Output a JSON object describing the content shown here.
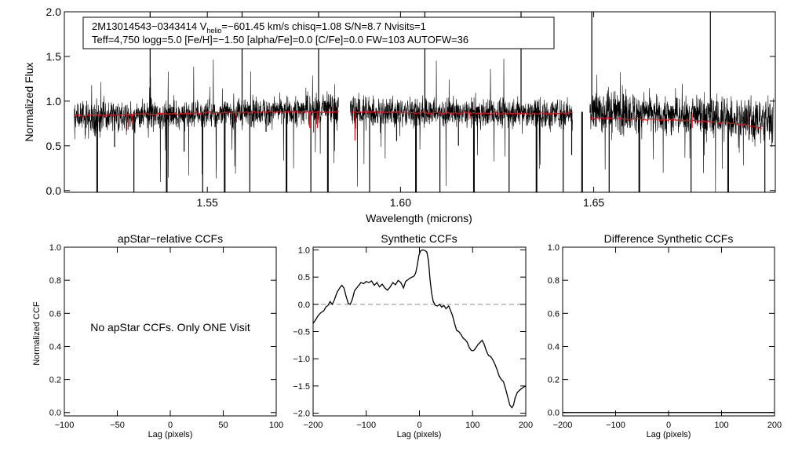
{
  "colors": {
    "axis": "#000000",
    "spectrum": "#000000",
    "model": "#e8101a",
    "zero_line": "#8c8c8c",
    "background": "#ffffff"
  },
  "chart_data": [
    {
      "id": "spectrum",
      "type": "line",
      "title": "",
      "xlabel": "Wavelength (microns)",
      "ylabel": "Normalized Flux",
      "xlim": [
        1.513,
        1.697
      ],
      "ylim": [
        -0.02,
        2.0
      ],
      "xticks": [
        {
          "value": 1.55,
          "label": "1.55"
        },
        {
          "value": 1.6,
          "label": "1.60"
        },
        {
          "value": 1.65,
          "label": "1.65"
        }
      ],
      "yticks": [
        {
          "value": 0.0,
          "label": "0.0"
        },
        {
          "value": 0.5,
          "label": "0.5"
        },
        {
          "value": 1.0,
          "label": "1.0"
        },
        {
          "value": 1.5,
          "label": "1.5"
        },
        {
          "value": 2.0,
          "label": "2.0"
        }
      ],
      "segments": [
        {
          "range": [
            1.5155,
            1.584
          ],
          "base": 0.86,
          "noise": 0.14,
          "trend": 0.1
        },
        {
          "range": [
            1.587,
            1.6445
          ],
          "base": 0.87,
          "noise": 0.14,
          "trend": -0.02
        },
        {
          "range": [
            1.649,
            1.6965
          ],
          "base": 0.84,
          "noise": 0.2,
          "trend": -0.12
        }
      ],
      "model": [
        {
          "range": [
            1.5155,
            1.584
          ],
          "values": [
            [
              1.5155,
              0.84
            ],
            [
              1.54,
              0.86
            ],
            [
              1.565,
              0.88
            ],
            [
              1.584,
              0.88
            ]
          ]
        },
        {
          "range": [
            1.587,
            1.6445
          ],
          "values": [
            [
              1.587,
              0.88
            ],
            [
              1.61,
              0.87
            ],
            [
              1.635,
              0.86
            ],
            [
              1.6445,
              0.87
            ]
          ]
        },
        {
          "range": [
            1.649,
            1.6935
          ],
          "values": [
            [
              1.649,
              0.81
            ],
            [
              1.67,
              0.79
            ],
            [
              1.685,
              0.76
            ],
            [
              1.6935,
              0.7
            ]
          ]
        }
      ],
      "model_dips": [
        [
          1.5295,
          0.68
        ],
        [
          1.5305,
          0.75
        ],
        [
          1.5575,
          0.78
        ],
        [
          1.5765,
          0.7
        ],
        [
          1.5775,
          0.65
        ],
        [
          1.5785,
          0.7
        ],
        [
          1.5882,
          0.56
        ],
        [
          1.618,
          0.8
        ],
        [
          1.6755,
          0.7
        ],
        [
          1.69,
          0.74
        ]
      ],
      "telluric_lines": [
        1.5215,
        1.526,
        1.531,
        1.5352,
        1.5395,
        1.544,
        1.5488,
        1.552,
        1.5545,
        1.559,
        1.561,
        1.5652,
        1.5705,
        1.5738,
        1.5768,
        1.5788,
        1.5812,
        1.5882,
        1.592,
        1.599,
        1.604,
        1.6063,
        1.6102,
        1.615,
        1.619,
        1.624,
        1.6281,
        1.6312,
        1.6352,
        1.6392,
        1.6421,
        1.6443,
        1.647,
        1.6495,
        1.654,
        1.6605,
        1.6618,
        1.6701,
        1.6752,
        1.6802,
        1.6848,
        1.6902,
        1.6943
      ],
      "annotation": {
        "line1_prefix": "2M13014543−0343414  V",
        "line1_sub": "helio",
        "line1_suffix": "=−601.45 km/s  chisq=1.08  S/N=8.7  Nvisits=1",
        "line2": "Teff=4,750 logg=5.0 [Fe/H]=−1.50 [alpha/Fe]=0.0 [C/Fe]=0.0 FW=103 AUTOFW=36"
      }
    },
    {
      "id": "apstar-ccf",
      "type": "line",
      "title": "apStar−relative CCFs",
      "xlabel": "Lag (pixels)",
      "ylabel": "Normalized CCF",
      "xlim": [
        -100,
        100
      ],
      "ylim": [
        -0.02,
        1.0
      ],
      "xticks": [
        {
          "value": -100,
          "label": "−100"
        },
        {
          "value": -50,
          "label": "−50"
        },
        {
          "value": 0,
          "label": "0"
        },
        {
          "value": 50,
          "label": "50"
        },
        {
          "value": 100,
          "label": "100"
        }
      ],
      "yticks": [
        {
          "value": 0.0,
          "label": "0.0"
        },
        {
          "value": 0.2,
          "label": "0.2"
        },
        {
          "value": 0.4,
          "label": "0.4"
        },
        {
          "value": 0.6,
          "label": "0.6"
        },
        {
          "value": 0.8,
          "label": "0.8"
        },
        {
          "value": 1.0,
          "label": "1.0"
        }
      ],
      "message": "No apStar CCFs.  Only ONE Visit"
    },
    {
      "id": "synthetic-ccf",
      "type": "line",
      "title": "Synthetic CCFs",
      "xlabel": "Lag (pixels)",
      "ylabel": "",
      "xlim": [
        -200,
        200
      ],
      "ylim": [
        -2.05,
        1.05
      ],
      "xticks": [
        {
          "value": -200,
          "label": "−200"
        },
        {
          "value": -100,
          "label": "−100"
        },
        {
          "value": 0,
          "label": "0"
        },
        {
          "value": 100,
          "label": "100"
        },
        {
          "value": 200,
          "label": "200"
        }
      ],
      "yticks": [
        {
          "value": -2.0,
          "label": "−2.0"
        },
        {
          "value": -1.5,
          "label": "−1.5"
        },
        {
          "value": -1.0,
          "label": "−1.0"
        },
        {
          "value": -0.5,
          "label": "−0.5"
        },
        {
          "value": 0.0,
          "label": "0.0"
        },
        {
          "value": 0.5,
          "label": "0.5"
        },
        {
          "value": 1.0,
          "label": "1.0"
        }
      ],
      "zero_line": 0.0,
      "series": [
        {
          "name": "ccf",
          "points": [
            [
              -200,
              -0.35
            ],
            [
              -195,
              -0.28
            ],
            [
              -190,
              -0.2
            ],
            [
              -185,
              -0.15
            ],
            [
              -180,
              -0.12
            ],
            [
              -176,
              -0.05
            ],
            [
              -172,
              -0.02
            ],
            [
              -168,
              0.05
            ],
            [
              -164,
              0.0
            ],
            [
              -160,
              0.08
            ],
            [
              -155,
              0.22
            ],
            [
              -150,
              0.3
            ],
            [
              -146,
              0.35
            ],
            [
              -142,
              0.3
            ],
            [
              -138,
              0.15
            ],
            [
              -134,
              0.02
            ],
            [
              -130,
              0.0
            ],
            [
              -126,
              0.1
            ],
            [
              -122,
              0.25
            ],
            [
              -118,
              0.3
            ],
            [
              -114,
              0.35
            ],
            [
              -110,
              0.4
            ],
            [
              -105,
              0.38
            ],
            [
              -100,
              0.42
            ],
            [
              -95,
              0.4
            ],
            [
              -90,
              0.43
            ],
            [
              -85,
              0.35
            ],
            [
              -80,
              0.4
            ],
            [
              -75,
              0.32
            ],
            [
              -70,
              0.37
            ],
            [
              -65,
              0.3
            ],
            [
              -60,
              0.26
            ],
            [
              -55,
              0.32
            ],
            [
              -50,
              0.4
            ],
            [
              -45,
              0.36
            ],
            [
              -40,
              0.44
            ],
            [
              -35,
              0.4
            ],
            [
              -30,
              0.3
            ],
            [
              -26,
              0.42
            ],
            [
              -22,
              0.45
            ],
            [
              -18,
              0.48
            ],
            [
              -14,
              0.5
            ],
            [
              -10,
              0.52
            ],
            [
              -7,
              0.58
            ],
            [
              -4,
              0.72
            ],
            [
              -1,
              0.9
            ],
            [
              2,
              0.98
            ],
            [
              6,
              1.0
            ],
            [
              10,
              0.99
            ],
            [
              14,
              0.96
            ],
            [
              17,
              0.8
            ],
            [
              20,
              0.45
            ],
            [
              23,
              0.2
            ],
            [
              26,
              0.05
            ],
            [
              30,
              -0.02
            ],
            [
              34,
              -0.03
            ],
            [
              38,
              0.0
            ],
            [
              42,
              -0.05
            ],
            [
              46,
              -0.02
            ],
            [
              50,
              -0.08
            ],
            [
              55,
              -0.03
            ],
            [
              58,
              -0.1
            ],
            [
              62,
              -0.2
            ],
            [
              66,
              -0.35
            ],
            [
              70,
              -0.48
            ],
            [
              74,
              -0.5
            ],
            [
              78,
              -0.55
            ],
            [
              82,
              -0.62
            ],
            [
              86,
              -0.65
            ],
            [
              90,
              -0.7
            ],
            [
              94,
              -0.8
            ],
            [
              98,
              -0.85
            ],
            [
              102,
              -0.85
            ],
            [
              106,
              -0.8
            ],
            [
              110,
              -0.74
            ],
            [
              114,
              -0.7
            ],
            [
              118,
              -0.66
            ],
            [
              122,
              -0.74
            ],
            [
              126,
              -0.86
            ],
            [
              130,
              -0.94
            ],
            [
              134,
              -0.96
            ],
            [
              138,
              -1.02
            ],
            [
              142,
              -1.1
            ],
            [
              146,
              -1.2
            ],
            [
              150,
              -1.32
            ],
            [
              154,
              -1.38
            ],
            [
              158,
              -1.42
            ],
            [
              162,
              -1.55
            ],
            [
              166,
              -1.7
            ],
            [
              170,
              -1.85
            ],
            [
              174,
              -1.9
            ],
            [
              177,
              -1.85
            ],
            [
              180,
              -1.72
            ],
            [
              184,
              -1.62
            ],
            [
              188,
              -1.58
            ],
            [
              192,
              -1.55
            ],
            [
              196,
              -1.52
            ],
            [
              200,
              -1.5
            ]
          ]
        }
      ]
    },
    {
      "id": "difference-ccf",
      "type": "line",
      "title": "Difference Synthetic CCFs",
      "xlabel": "Lag (pixels)",
      "ylabel": "",
      "xlim": [
        -200,
        200
      ],
      "ylim": [
        -0.02,
        1.0
      ],
      "xticks": [
        {
          "value": -200,
          "label": "−200"
        },
        {
          "value": -100,
          "label": "−100"
        },
        {
          "value": 0,
          "label": "0"
        },
        {
          "value": 100,
          "label": "100"
        },
        {
          "value": 200,
          "label": "200"
        }
      ],
      "yticks": [
        {
          "value": 0.0,
          "label": "0.0"
        },
        {
          "value": 0.2,
          "label": "0.2"
        },
        {
          "value": 0.4,
          "label": "0.4"
        },
        {
          "value": 0.6,
          "label": "0.6"
        },
        {
          "value": 0.8,
          "label": "0.8"
        },
        {
          "value": 1.0,
          "label": "1.0"
        }
      ],
      "series": [
        {
          "name": "difference",
          "points": [
            [
              -200,
              0.0
            ],
            [
              200,
              0.0
            ]
          ]
        }
      ]
    }
  ]
}
